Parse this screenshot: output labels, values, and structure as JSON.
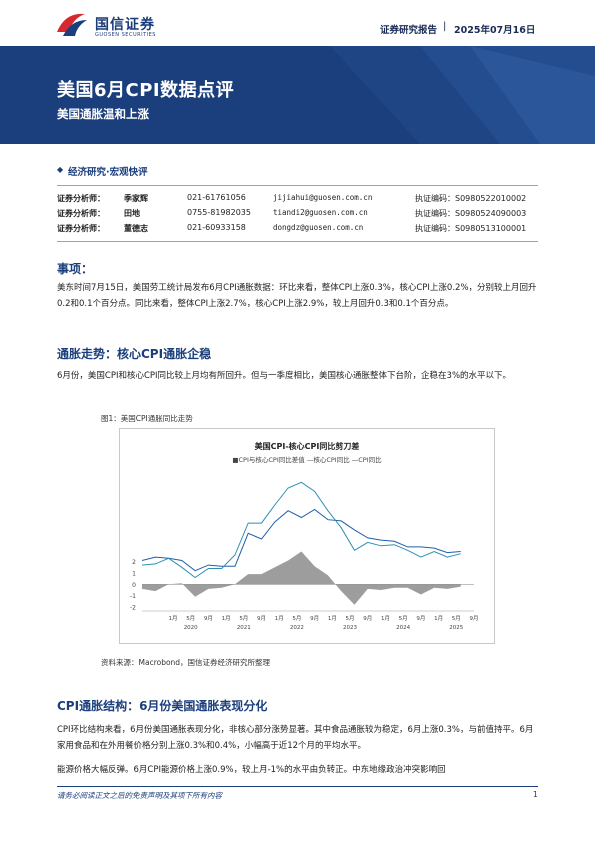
{
  "header": {
    "logo_cn": "国信证券",
    "logo_en": "GUOSEN SECURITIES",
    "report_type": "证券研究报告",
    "separator": "|",
    "date": "2025年07月16日"
  },
  "banner": {
    "title": "美国6月CPI数据点评",
    "subtitle": "美国通胀温和上涨"
  },
  "category": {
    "bullet": "◆",
    "label": "经济研究·宏观快评"
  },
  "analysts": [
    {
      "role": "证券分析师：",
      "name": "季家辉",
      "phone": "021-61761056",
      "email": "jijiahui@guosen.com.cn",
      "cert": "执证编码：S0980522010002"
    },
    {
      "role": "证券分析师：",
      "name": "田地",
      "phone": "0755-81982035",
      "email": "tiandi2@guosen.com.cn",
      "cert": "执证编码：S0980524090003"
    },
    {
      "role": "证券分析师：",
      "name": "董德志",
      "phone": "021-60933158",
      "email": "dongdz@guosen.com.cn",
      "cert": "执证编码：S0980513100001"
    }
  ],
  "sections": {
    "event_title": "事项：",
    "event_text": "美东时间7月15日，美国劳工统计局发布6月CPI通胀数据：环比来看，整体CPI上涨0.3%，核心CPI上涨0.2%，分别较上月回升0.2和0.1个百分点。同比来看，整体CPI上涨2.7%，核心CPI上涨2.9%，较上月回升0.3和0.1个百分点。",
    "trend_title": "通胀走势：核心CPI通胀企稳",
    "trend_text": "6月份，美国CPI和核心CPI同比较上月均有所回升。但与一季度相比，美国核心通胀整体下台阶，企稳在3%的水平以下。",
    "structure_title": "CPI通胀结构：6月份美国通胀表现分化",
    "structure_text1": "CPI环比结构来看，6月份美国通胀表现分化，非核心部分涨势显著。其中食品通胀较为稳定，6月上涨0.3%，与前值持平。6月家用食品和在外用餐价格分别上涨0.3%和0.4%，小幅高于近12个月的平均水平。",
    "structure_text2": "能源价格大幅反弹。6月CPI能源价格上涨0.9%，较上月-1%的水平由负转正。中东地缘政治冲突影响回"
  },
  "figure": {
    "caption": "图1：美国CPI通胀同比走势",
    "source": "资料来源：Macrobond，国信证券经济研究所整理"
  },
  "chart_data": {
    "type": "line",
    "title": "美国CPI-核心CPI同比剪刀差",
    "legend_text": "■CPI与核心CPI同比差值 —核心CPI同比 —CPI同比",
    "series": [
      {
        "name": "CPI与核心CPI同比差值",
        "kind": "area",
        "color": "#8c8c8c",
        "x": [
          "2019-06",
          "2019-09",
          "2019-12",
          "2020-03",
          "2020-06",
          "2020-09",
          "2020-12",
          "2021-03",
          "2021-06",
          "2021-09",
          "2021-12",
          "2022-03",
          "2022-06",
          "2022-09",
          "2022-12",
          "2023-03",
          "2023-06",
          "2023-09",
          "2023-12",
          "2024-03",
          "2024-06",
          "2024-09",
          "2024-12",
          "2025-03",
          "2025-06"
        ],
        "values": [
          -0.4,
          -0.6,
          0.0,
          0.1,
          -1.1,
          -0.4,
          -0.3,
          0.0,
          0.9,
          0.9,
          1.5,
          2.1,
          2.9,
          1.6,
          0.8,
          -0.6,
          -1.8,
          -0.4,
          -0.5,
          -0.3,
          -0.3,
          -0.9,
          -0.3,
          -0.4,
          -0.2
        ]
      },
      {
        "name": "核心CPI同比",
        "kind": "line",
        "color": "#1f5fa8",
        "x": [
          "2019-06",
          "2019-09",
          "2019-12",
          "2020-03",
          "2020-06",
          "2020-09",
          "2020-12",
          "2021-03",
          "2021-06",
          "2021-09",
          "2021-12",
          "2022-03",
          "2022-06",
          "2022-09",
          "2022-12",
          "2023-03",
          "2023-06",
          "2023-09",
          "2023-12",
          "2024-03",
          "2024-06",
          "2024-09",
          "2024-12",
          "2025-03",
          "2025-06"
        ],
        "values": [
          2.1,
          2.4,
          2.3,
          2.1,
          1.2,
          1.7,
          1.6,
          1.6,
          4.5,
          4.0,
          5.5,
          6.5,
          5.9,
          6.6,
          5.7,
          5.6,
          4.8,
          4.1,
          3.9,
          3.8,
          3.3,
          3.3,
          3.2,
          2.8,
          2.9
        ]
      },
      {
        "name": "CPI同比",
        "kind": "line",
        "color": "#2e8fb3",
        "x": [
          "2019-06",
          "2019-09",
          "2019-12",
          "2020-03",
          "2020-06",
          "2020-09",
          "2020-12",
          "2021-03",
          "2021-06",
          "2021-09",
          "2021-12",
          "2022-03",
          "2022-06",
          "2022-09",
          "2022-12",
          "2023-03",
          "2023-06",
          "2023-09",
          "2023-12",
          "2024-03",
          "2024-06",
          "2024-09",
          "2024-12",
          "2025-03",
          "2025-06"
        ],
        "values": [
          1.7,
          1.8,
          2.3,
          1.5,
          0.6,
          1.4,
          1.4,
          2.6,
          5.4,
          5.4,
          7.0,
          8.5,
          9.0,
          8.2,
          6.5,
          5.0,
          3.0,
          3.7,
          3.4,
          3.5,
          3.0,
          2.4,
          2.9,
          2.4,
          2.7
        ]
      }
    ],
    "y_ticks": [
      "-2",
      "-1",
      "0",
      "1",
      "2"
    ],
    "ylim": [
      -2,
      10
    ],
    "x_tick_labels": [
      "1月",
      "5月",
      "9月",
      "1月",
      "5月",
      "9月",
      "1月",
      "5月",
      "9月",
      "1月",
      "5月",
      "9月",
      "1月",
      "5月",
      "9月",
      "1月",
      "5月",
      "9月"
    ],
    "year_labels": [
      "2020",
      "2021",
      "2022",
      "2023",
      "2024",
      "2025"
    ],
    "grid": false
  },
  "footer": {
    "disclaimer": "请务必阅读正文之后的免责声明及其项下所有内容",
    "page": "1"
  },
  "colors": {
    "brand_blue": "#1b3f7c",
    "logo_red": "#d7282f"
  }
}
